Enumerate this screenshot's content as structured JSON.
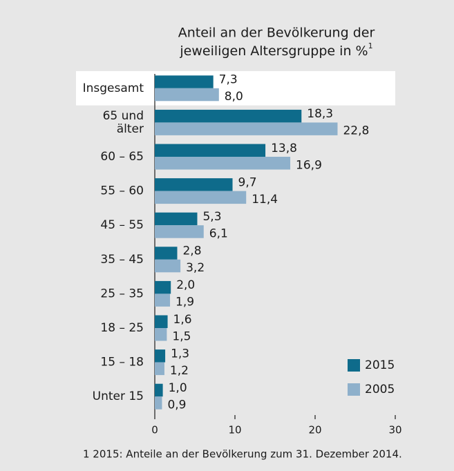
{
  "chart_data": {
    "type": "bar",
    "orientation": "horizontal",
    "title": [
      "Anteil an der Bevölkerung der",
      "jeweiligen Altersgruppe in %"
    ],
    "title_footnote_marker": "1",
    "categories": [
      "Insgesamt",
      "65 und\nälter",
      "60  –  65",
      "55  –  60",
      "45  –  55",
      "35  –  45",
      "25  –  35",
      "18  –  25",
      "15  –  18",
      "Unter 15"
    ],
    "highlight_category": 0,
    "series": [
      {
        "name": "2015",
        "color": "#0e6b8b",
        "values": [
          7.3,
          18.3,
          13.8,
          9.7,
          5.3,
          2.8,
          2.0,
          1.6,
          1.3,
          1.0
        ],
        "value_labels": [
          "7,3",
          "18,3",
          "13,8",
          "9,7",
          "5,3",
          "2,8",
          "2,0",
          "1,6",
          "1,3",
          "1,0"
        ]
      },
      {
        "name": "2005",
        "color": "#8eb0cb",
        "values": [
          8.0,
          22.8,
          16.9,
          11.4,
          6.1,
          3.2,
          1.9,
          1.5,
          1.2,
          0.9
        ],
        "value_labels": [
          "8,0",
          "22,8",
          "16,9",
          "11,4",
          "6,1",
          "3,2",
          "1,9",
          "1,5",
          "1,2",
          "0,9"
        ]
      }
    ],
    "xlim": [
      0,
      30
    ],
    "xticks": [
      0,
      10,
      20,
      30
    ],
    "legend": "lower right",
    "note": "1  2015: Anteile an der Bevölkerung zum 31. Dezember 2014."
  }
}
